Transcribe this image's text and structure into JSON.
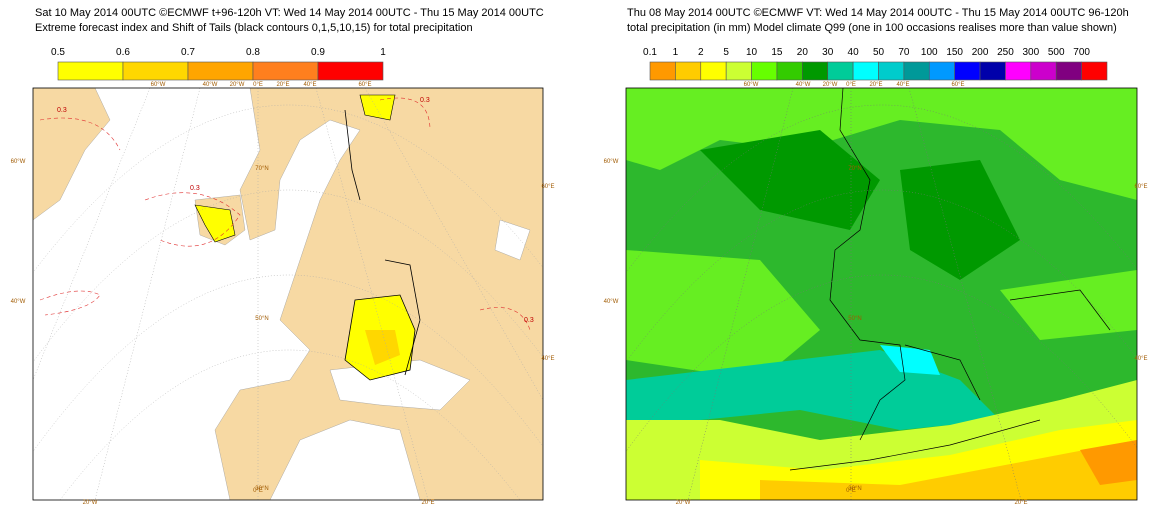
{
  "left": {
    "title": "Sat 10 May 2014 00UTC ©ECMWF t+96-120h  VT: Wed 14 May 2014 00UTC - Thu 15 May 2014 00UTC",
    "subtitle": "Extreme forecast index and Shift of Tails (black contours 0,1,5,10,15) for total precipitation",
    "legend_labels": [
      "0.5",
      "0.6",
      "0.7",
      "0.8",
      "0.9",
      "1"
    ],
    "legend_colors": [
      "#ffff00",
      "#ffd700",
      "#ffa500",
      "#ff7f1e",
      "#ff0000"
    ],
    "graticule": [
      "60°W",
      "40°W",
      "20°W",
      "0°E",
      "20°E",
      "40°E",
      "60°E",
      "60°W",
      "40°W",
      "60°E",
      "40°E",
      "20°W",
      "0°E",
      "20°E",
      "70°N",
      "50°N",
      "30°N"
    ],
    "contour_labels": [
      "0.3",
      "0.3",
      "0.3",
      "0.3"
    ]
  },
  "right": {
    "title": "Thu 08 May 2014 00UTC ©ECMWF VT: Wed 14 May 2014 00UTC - Thu 15 May 2014 00UTC   96-120h",
    "subtitle": "total precipitation (in mm)  Model climate Q99 (one in 100 occasions realises more than value shown)",
    "legend_labels": [
      "0.1",
      "1",
      "2",
      "5",
      "10",
      "15",
      "20",
      "30",
      "40",
      "50",
      "70",
      "100",
      "150",
      "200",
      "250",
      "300",
      "500",
      "700"
    ],
    "legend_colors": [
      "#ff9900",
      "#ffcc00",
      "#ffff00",
      "#ccff33",
      "#66ff00",
      "#33cc00",
      "#009900",
      "#00cc99",
      "#00ffff",
      "#00cccc",
      "#009999",
      "#0099ff",
      "#0000ff",
      "#0000aa",
      "#ff00ff",
      "#cc00cc",
      "#800080",
      "#ff0000"
    ],
    "graticule": [
      "60°W",
      "40°W",
      "20°W",
      "0°E",
      "20°E",
      "40°E",
      "60°E",
      "60°W",
      "40°W",
      "60°E",
      "40°E",
      "20°W",
      "0°E",
      "20°E",
      "70°N",
      "50°N",
      "30°N"
    ]
  }
}
